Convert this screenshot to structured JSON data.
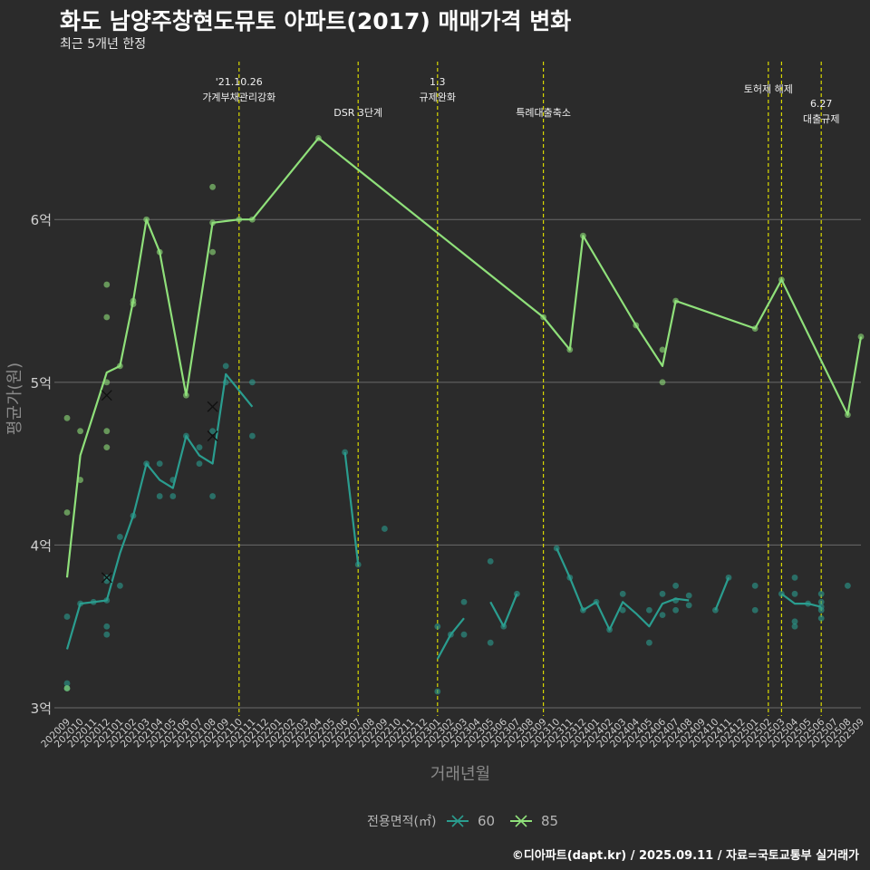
{
  "header": {
    "title": "화도 남양주창현도뮤토 아파트(2017) 매매가격 변화",
    "subtitle": "최근 5개년 한정"
  },
  "caption": "©디아파트(dapt.kr) / 2025.09.11 / 자료=국토교통부 실거래가",
  "colors": {
    "background": "#2b2b2b",
    "grid": "#6b6b6b",
    "event_line": "#d8d800",
    "series_60": "#2a9d8f",
    "series_85": "#8fe07a"
  },
  "chart_data": {
    "type": "line",
    "xlabel": "거래년월",
    "ylabel": "평균가(원)",
    "ylim": [
      2.95,
      6.97
    ],
    "yticks": [
      {
        "value": 3,
        "label": "3억"
      },
      {
        "value": 4,
        "label": "4억"
      },
      {
        "value": 5,
        "label": "5억"
      },
      {
        "value": 6,
        "label": "6억"
      }
    ],
    "categories": [
      "202009",
      "202010",
      "202011",
      "202012",
      "202101",
      "202102",
      "202103",
      "202104",
      "202105",
      "202106",
      "202107",
      "202108",
      "202109",
      "202110",
      "202111",
      "202112",
      "202201",
      "202202",
      "202203",
      "202204",
      "202205",
      "202206",
      "202207",
      "202208",
      "202209",
      "202210",
      "202211",
      "202212",
      "202301",
      "202302",
      "202303",
      "202304",
      "202305",
      "202306",
      "202307",
      "202308",
      "202309",
      "202310",
      "202311",
      "202312",
      "202401",
      "202402",
      "202403",
      "202404",
      "202405",
      "202406",
      "202407",
      "202408",
      "202409",
      "202410",
      "202411",
      "202412",
      "202501",
      "202502",
      "202503",
      "202504",
      "202505",
      "202506",
      "202507",
      "202508",
      "202509"
    ],
    "legend": {
      "title": "전용면적(㎡)",
      "items": [
        "60",
        "85"
      ]
    },
    "events": [
      {
        "month": "202110",
        "label": "'21.10.26\n가계부채관리강화",
        "row": 0
      },
      {
        "month": "202207",
        "label": "DSR 3단계",
        "row": 2
      },
      {
        "month": "202301",
        "label": "1.3\n규제완화",
        "row": 0
      },
      {
        "month": "202309",
        "label": "특례대출축소",
        "row": 2
      },
      {
        "month": "202502",
        "label": "토허제 해제",
        "row": 1
      },
      {
        "month": "202503",
        "label": "",
        "row": 0
      },
      {
        "month": "202506",
        "label": "6.27\n대출규제",
        "row": 3
      }
    ],
    "series": [
      {
        "name": "60",
        "lines": [
          [
            [
              "202009",
              3.36
            ],
            [
              "202010",
              3.64
            ],
            [
              "202011",
              3.65
            ],
            [
              "202012",
              3.66
            ],
            [
              "202101",
              3.95
            ],
            [
              "202102",
              4.18
            ],
            [
              "202103",
              4.5
            ],
            [
              "202104",
              4.4
            ],
            [
              "202105",
              4.35
            ],
            [
              "202106",
              4.67
            ],
            [
              "202107",
              4.55
            ],
            [
              "202108",
              4.5
            ],
            [
              "202109",
              5.05
            ],
            [
              "202110",
              4.95
            ],
            [
              "202111",
              4.85
            ]
          ],
          [
            [
              "202206",
              4.57
            ],
            [
              "202207",
              3.88
            ]
          ],
          [
            [
              "202301",
              3.3
            ],
            [
              "202302",
              3.45
            ],
            [
              "202303",
              3.55
            ]
          ],
          [
            [
              "202305",
              3.65
            ],
            [
              "202306",
              3.5
            ],
            [
              "202307",
              3.7
            ]
          ],
          [
            [
              "202310",
              3.98
            ],
            [
              "202311",
              3.8
            ],
            [
              "202312",
              3.6
            ],
            [
              "202401",
              3.65
            ],
            [
              "202402",
              3.48
            ],
            [
              "202403",
              3.65
            ],
            [
              "202404",
              3.58
            ],
            [
              "202405",
              3.5
            ],
            [
              "202406",
              3.64
            ],
            [
              "202407",
              3.67
            ],
            [
              "202408",
              3.66
            ]
          ],
          [
            [
              "202410",
              3.6
            ],
            [
              "202411",
              3.8
            ]
          ],
          [
            [
              "202503",
              3.7
            ],
            [
              "202504",
              3.64
            ],
            [
              "202505",
              3.64
            ],
            [
              "202506",
              3.62
            ]
          ]
        ],
        "points": [
          [
            "202009",
            3.56
          ],
          [
            "202009",
            3.15
          ],
          [
            "202009",
            3.12
          ],
          [
            "202010",
            3.64
          ],
          [
            "202011",
            3.65
          ],
          [
            "202012",
            3.8
          ],
          [
            "202012",
            3.78
          ],
          [
            "202012",
            3.66
          ],
          [
            "202012",
            3.5
          ],
          [
            "202012",
            3.45
          ],
          [
            "202101",
            4.05
          ],
          [
            "202101",
            3.75
          ],
          [
            "202102",
            4.18
          ],
          [
            "202103",
            4.5
          ],
          [
            "202104",
            4.5
          ],
          [
            "202104",
            4.3
          ],
          [
            "202105",
            4.4
          ],
          [
            "202105",
            4.3
          ],
          [
            "202106",
            4.67
          ],
          [
            "202107",
            4.6
          ],
          [
            "202107",
            4.5
          ],
          [
            "202108",
            4.7
          ],
          [
            "202108",
            4.3
          ],
          [
            "202109",
            5.1
          ],
          [
            "202109",
            5.0
          ],
          [
            "202111",
            5.0
          ],
          [
            "202111",
            4.67
          ],
          [
            "202206",
            4.57
          ],
          [
            "202207",
            3.88
          ],
          [
            "202209",
            4.1
          ],
          [
            "202301",
            3.5
          ],
          [
            "202301",
            3.1
          ],
          [
            "202302",
            3.45
          ],
          [
            "202303",
            3.65
          ],
          [
            "202303",
            3.45
          ],
          [
            "202305",
            3.9
          ],
          [
            "202305",
            3.4
          ],
          [
            "202306",
            3.5
          ],
          [
            "202307",
            3.7
          ],
          [
            "202310",
            3.98
          ],
          [
            "202311",
            3.8
          ],
          [
            "202312",
            3.6
          ],
          [
            "202401",
            3.65
          ],
          [
            "202402",
            3.48
          ],
          [
            "202403",
            3.7
          ],
          [
            "202403",
            3.6
          ],
          [
            "202405",
            3.6
          ],
          [
            "202405",
            3.4
          ],
          [
            "202406",
            3.7
          ],
          [
            "202406",
            3.57
          ],
          [
            "202407",
            3.75
          ],
          [
            "202407",
            3.66
          ],
          [
            "202407",
            3.6
          ],
          [
            "202408",
            3.69
          ],
          [
            "202408",
            3.63
          ],
          [
            "202410",
            3.6
          ],
          [
            "202411",
            3.8
          ],
          [
            "202501",
            3.75
          ],
          [
            "202501",
            3.6
          ],
          [
            "202503",
            3.7
          ],
          [
            "202504",
            3.8
          ],
          [
            "202504",
            3.7
          ],
          [
            "202504",
            3.53
          ],
          [
            "202504",
            3.5
          ],
          [
            "202505",
            3.64
          ],
          [
            "202506",
            3.7
          ],
          [
            "202506",
            3.65
          ],
          [
            "202506",
            3.62
          ],
          [
            "202506",
            3.6
          ],
          [
            "202506",
            3.55
          ],
          [
            "202508",
            3.75
          ]
        ],
        "cancelled": [
          [
            "202012",
            3.8
          ],
          [
            "202108",
            4.85
          ],
          [
            "202108",
            4.67
          ]
        ]
      },
      {
        "name": "85",
        "lines": [
          [
            [
              "202009",
              3.8
            ],
            [
              "202010",
              4.55
            ],
            [
              "202012",
              5.06
            ],
            [
              "202101",
              5.1
            ],
            [
              "202102",
              5.5
            ],
            [
              "202103",
              6.0
            ],
            [
              "202104",
              5.8
            ],
            [
              "202106",
              4.92
            ],
            [
              "202108",
              5.98
            ],
            [
              "202110",
              6.0
            ],
            [
              "202111",
              6.0
            ],
            [
              "202204",
              6.5
            ],
            [
              "202309",
              5.4
            ],
            [
              "202311",
              5.2
            ],
            [
              "202312",
              5.9
            ],
            [
              "202404",
              5.35
            ],
            [
              "202406",
              5.1
            ],
            [
              "202407",
              5.5
            ],
            [
              "202501",
              5.33
            ],
            [
              "202503",
              5.63
            ],
            [
              "202508",
              4.8
            ],
            [
              "202509",
              5.28
            ]
          ]
        ],
        "points": [
          [
            "202009",
            4.78
          ],
          [
            "202009",
            4.2
          ],
          [
            "202009",
            3.12
          ],
          [
            "202010",
            4.7
          ],
          [
            "202010",
            4.4
          ],
          [
            "202012",
            5.6
          ],
          [
            "202012",
            5.4
          ],
          [
            "202012",
            5.0
          ],
          [
            "202012",
            4.7
          ],
          [
            "202012",
            4.6
          ],
          [
            "202101",
            5.1
          ],
          [
            "202102",
            5.5
          ],
          [
            "202102",
            5.48
          ],
          [
            "202103",
            6.0
          ],
          [
            "202104",
            5.8
          ],
          [
            "202106",
            4.92
          ],
          [
            "202108",
            6.2
          ],
          [
            "202108",
            5.98
          ],
          [
            "202108",
            5.8
          ],
          [
            "202110",
            6.0
          ],
          [
            "202111",
            6.0
          ],
          [
            "202204",
            6.5
          ],
          [
            "202309",
            5.4
          ],
          [
            "202311",
            5.2
          ],
          [
            "202312",
            5.9
          ],
          [
            "202404",
            5.35
          ],
          [
            "202406",
            5.2
          ],
          [
            "202406",
            5.0
          ],
          [
            "202407",
            5.5
          ],
          [
            "202501",
            5.33
          ],
          [
            "202503",
            5.63
          ],
          [
            "202508",
            4.8
          ],
          [
            "202509",
            5.28
          ]
        ],
        "cancelled": [
          [
            "202012",
            4.92
          ]
        ]
      }
    ]
  }
}
